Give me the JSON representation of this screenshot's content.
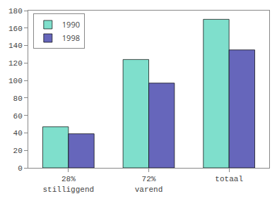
{
  "chart_data": {
    "type": "bar",
    "categories": [
      "28%\nstilliggend",
      "72%\nvarend",
      "totaal"
    ],
    "series": [
      {
        "name": "1990",
        "color": "#7FDFCC",
        "values": [
          47,
          124,
          170
        ]
      },
      {
        "name": "1998",
        "color": "#6666BB",
        "values": [
          39,
          97,
          135
        ]
      }
    ],
    "ylim": [
      0,
      180
    ],
    "yticks": [
      0,
      20,
      40,
      60,
      80,
      100,
      120,
      140,
      160,
      180
    ],
    "grid": false,
    "legend": "upper left"
  }
}
